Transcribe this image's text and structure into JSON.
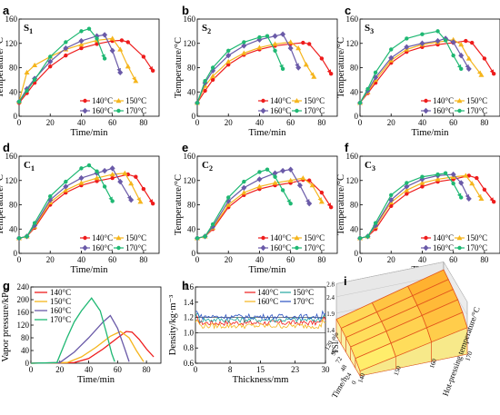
{
  "colors": {
    "red": "#ee1c1c",
    "orange": "#f5b51c",
    "purple": "#6a5aa8",
    "green": "#1fb873",
    "teal": "#23a6a0",
    "blue": "#2a52c2"
  },
  "temp_legend": [
    "140°C",
    "150°C",
    "160°C",
    "170°C"
  ],
  "chart_data": [
    {
      "type": "line",
      "panel": "a",
      "title": "S1",
      "xlabel": "Time/min",
      "ylabel": "Temperature/°C",
      "xlim": [
        0,
        90
      ],
      "ylim": [
        0,
        160
      ],
      "xticks": [
        0,
        20,
        40,
        60,
        80
      ],
      "yticks": [
        0,
        40,
        80,
        120,
        160
      ],
      "series": [
        {
          "name": "140°C",
          "x": [
            0,
            5,
            10,
            20,
            30,
            40,
            50,
            60,
            66,
            70,
            80,
            86
          ],
          "y": [
            22,
            38,
            55,
            82,
            100,
            112,
            119,
            124,
            125,
            122,
            98,
            75
          ]
        },
        {
          "name": "150°C",
          "x": [
            0,
            5,
            10,
            20,
            30,
            40,
            50,
            60,
            65,
            70,
            75
          ],
          "y": [
            24,
            72,
            84,
            98,
            110,
            118,
            125,
            128,
            110,
            82,
            58
          ]
        },
        {
          "name": "160°C",
          "x": [
            0,
            5,
            10,
            20,
            30,
            40,
            50,
            55,
            60,
            65
          ],
          "y": [
            24,
            45,
            62,
            90,
            112,
            124,
            132,
            134,
            108,
            72
          ]
        },
        {
          "name": "170°C",
          "x": [
            0,
            5,
            10,
            20,
            30,
            40,
            45,
            50,
            55
          ],
          "y": [
            24,
            42,
            60,
            98,
            122,
            140,
            144,
            128,
            95
          ]
        }
      ]
    },
    {
      "type": "line",
      "panel": "b",
      "title": "S2",
      "xlabel": "Time/min",
      "ylabel": "Temperature/°C",
      "xlim": [
        0,
        90
      ],
      "ylim": [
        0,
        160
      ],
      "xticks": [
        0,
        20,
        40,
        60,
        80
      ],
      "yticks": [
        0,
        40,
        80,
        120,
        160
      ],
      "series": [
        {
          "name": "140°C",
          "x": [
            0,
            5,
            10,
            20,
            30,
            40,
            50,
            60,
            68,
            72,
            80,
            86
          ],
          "y": [
            22,
            42,
            60,
            85,
            101,
            110,
            116,
            119,
            121,
            119,
            95,
            70
          ]
        },
        {
          "name": "150°C",
          "x": [
            0,
            5,
            10,
            20,
            30,
            40,
            50,
            60,
            65,
            70,
            75
          ],
          "y": [
            22,
            50,
            66,
            90,
            104,
            113,
            119,
            122,
            112,
            85,
            65
          ]
        },
        {
          "name": "160°C",
          "x": [
            0,
            5,
            10,
            20,
            30,
            40,
            50,
            55,
            60,
            65
          ],
          "y": [
            22,
            55,
            75,
            100,
            116,
            126,
            132,
            135,
            112,
            80
          ]
        },
        {
          "name": "170°C",
          "x": [
            0,
            5,
            10,
            20,
            30,
            40,
            45,
            50,
            55
          ],
          "y": [
            22,
            58,
            80,
            108,
            122,
            130,
            132,
            108,
            78
          ]
        }
      ]
    },
    {
      "type": "line",
      "panel": "c",
      "title": "S3",
      "xlabel": "Time/min",
      "ylabel": "Temperature/°C",
      "xlim": [
        0,
        90
      ],
      "ylim": [
        0,
        160
      ],
      "xticks": [
        0,
        20,
        40,
        60,
        80
      ],
      "yticks": [
        0,
        40,
        80,
        120,
        160
      ],
      "series": [
        {
          "name": "140°C",
          "x": [
            0,
            5,
            10,
            20,
            30,
            40,
            50,
            60,
            68,
            72,
            80,
            86
          ],
          "y": [
            22,
            38,
            55,
            88,
            106,
            114,
            118,
            121,
            124,
            121,
            95,
            70
          ]
        },
        {
          "name": "150°C",
          "x": [
            0,
            5,
            10,
            20,
            30,
            40,
            50,
            60,
            65,
            70,
            78
          ],
          "y": [
            22,
            40,
            60,
            92,
            110,
            118,
            122,
            126,
            118,
            95,
            68
          ]
        },
        {
          "name": "160°C",
          "x": [
            0,
            5,
            10,
            20,
            30,
            40,
            50,
            55,
            60,
            65,
            70
          ],
          "y": [
            22,
            42,
            64,
            96,
            114,
            120,
            124,
            128,
            122,
            100,
            78
          ]
        },
        {
          "name": "170°C",
          "x": [
            0,
            5,
            10,
            20,
            30,
            40,
            50,
            55,
            60,
            65
          ],
          "y": [
            22,
            45,
            72,
            110,
            128,
            135,
            140,
            125,
            100,
            78
          ]
        }
      ]
    },
    {
      "type": "line",
      "panel": "d",
      "title": "C1",
      "xlabel": "Time/min",
      "ylabel": "Temperature/°C",
      "xlim": [
        0,
        90
      ],
      "ylim": [
        0,
        160
      ],
      "xticks": [
        0,
        20,
        40,
        60,
        80
      ],
      "yticks": [
        0,
        40,
        80,
        120,
        160
      ],
      "series": [
        {
          "name": "140°C",
          "x": [
            0,
            5,
            10,
            20,
            30,
            40,
            50,
            60,
            70,
            75,
            80,
            86
          ],
          "y": [
            25,
            28,
            42,
            80,
            100,
            112,
            119,
            124,
            130,
            126,
            106,
            82
          ]
        },
        {
          "name": "150°C",
          "x": [
            0,
            5,
            10,
            20,
            30,
            40,
            50,
            60,
            68,
            72,
            78
          ],
          "y": [
            25,
            28,
            44,
            84,
            104,
            116,
            124,
            130,
            132,
            115,
            85
          ]
        },
        {
          "name": "160°C",
          "x": [
            0,
            5,
            10,
            20,
            30,
            40,
            50,
            55,
            60,
            65,
            72
          ],
          "y": [
            25,
            28,
            46,
            88,
            110,
            124,
            132,
            136,
            140,
            118,
            88
          ]
        },
        {
          "name": "170°C",
          "x": [
            0,
            5,
            10,
            20,
            30,
            40,
            45,
            50,
            55,
            60
          ],
          "y": [
            25,
            28,
            50,
            94,
            118,
            140,
            145,
            135,
            110,
            86
          ]
        }
      ]
    },
    {
      "type": "line",
      "panel": "e",
      "title": "C2",
      "xlabel": "Time/min",
      "ylabel": "Temperature/°C",
      "xlim": [
        0,
        90
      ],
      "ylim": [
        0,
        160
      ],
      "xticks": [
        0,
        20,
        40,
        60,
        80
      ],
      "yticks": [
        0,
        40,
        80,
        120,
        160
      ],
      "series": [
        {
          "name": "140°C",
          "x": [
            0,
            5,
            10,
            20,
            30,
            40,
            50,
            60,
            68,
            72,
            80,
            86
          ],
          "y": [
            25,
            28,
            40,
            76,
            96,
            106,
            112,
            116,
            121,
            120,
            100,
            76
          ]
        },
        {
          "name": "150°C",
          "x": [
            0,
            5,
            10,
            20,
            30,
            40,
            50,
            60,
            68,
            74,
            80
          ],
          "y": [
            25,
            28,
            42,
            80,
            100,
            110,
            116,
            120,
            124,
            112,
            85
          ]
        },
        {
          "name": "160°C",
          "x": [
            0,
            5,
            10,
            20,
            30,
            40,
            50,
            55,
            60,
            66,
            72
          ],
          "y": [
            25,
            28,
            44,
            86,
            108,
            122,
            132,
            136,
            138,
            112,
            82
          ]
        },
        {
          "name": "170°C",
          "x": [
            0,
            5,
            10,
            20,
            30,
            40,
            45,
            50,
            55,
            60
          ],
          "y": [
            25,
            28,
            48,
            92,
            118,
            134,
            138,
            126,
            104,
            82
          ]
        }
      ]
    },
    {
      "type": "line",
      "panel": "f",
      "title": "C3",
      "xlabel": "Time/min",
      "ylabel": "Temperature/°C",
      "xlim": [
        0,
        90
      ],
      "ylim": [
        0,
        160
      ],
      "xticks": [
        0,
        20,
        40,
        60,
        80
      ],
      "yticks": [
        0,
        40,
        80,
        120,
        160
      ],
      "series": [
        {
          "name": "140°C",
          "x": [
            0,
            5,
            10,
            20,
            30,
            40,
            50,
            60,
            70,
            75,
            80,
            86
          ],
          "y": [
            25,
            28,
            40,
            78,
            98,
            110,
            118,
            122,
            128,
            124,
            105,
            85
          ]
        },
        {
          "name": "150°C",
          "x": [
            0,
            5,
            10,
            20,
            30,
            40,
            50,
            60,
            68,
            72,
            78
          ],
          "y": [
            25,
            28,
            44,
            84,
            104,
            116,
            122,
            126,
            128,
            115,
            90
          ]
        },
        {
          "name": "160°C",
          "x": [
            0,
            5,
            10,
            20,
            30,
            40,
            50,
            60,
            65,
            70
          ],
          "y": [
            25,
            28,
            46,
            88,
            110,
            122,
            128,
            130,
            116,
            90
          ]
        },
        {
          "name": "170°C",
          "x": [
            0,
            5,
            10,
            20,
            30,
            40,
            50,
            55,
            60,
            65
          ],
          "y": [
            25,
            28,
            50,
            96,
            116,
            126,
            130,
            132,
            115,
            92
          ]
        }
      ]
    },
    {
      "type": "line",
      "panel": "g",
      "xlabel": "Time/min",
      "ylabel": "Vapor pressure/kPa",
      "xlim": [
        0,
        90
      ],
      "ylim": [
        0,
        240
      ],
      "xticks": [
        0,
        20,
        40,
        60,
        80
      ],
      "yticks": [
        0,
        40,
        80,
        120,
        160,
        200,
        240
      ],
      "series": [
        {
          "name": "140°C",
          "x": [
            0,
            30,
            40,
            50,
            60,
            66,
            70,
            75,
            80,
            85
          ],
          "y": [
            0,
            2,
            15,
            45,
            80,
            100,
            98,
            75,
            45,
            20
          ]
        },
        {
          "name": "150°C",
          "x": [
            0,
            25,
            35,
            45,
            55,
            62,
            68,
            73,
            78
          ],
          "y": [
            0,
            2,
            20,
            50,
            85,
            100,
            80,
            40,
            5
          ]
        },
        {
          "name": "160°C",
          "x": [
            0,
            20,
            30,
            40,
            50,
            55,
            60,
            65,
            68
          ],
          "y": [
            0,
            2,
            35,
            80,
            130,
            150,
            110,
            45,
            5
          ]
        },
        {
          "name": "170°C",
          "x": [
            0,
            18,
            25,
            30,
            35,
            42,
            48,
            52,
            56,
            58
          ],
          "y": [
            0,
            2,
            80,
            130,
            165,
            205,
            165,
            100,
            30,
            5
          ]
        }
      ]
    },
    {
      "type": "line",
      "panel": "h",
      "xlabel": "Thickness/mm",
      "ylabel": "Density/kg·m⁻³",
      "xlim": [
        0,
        30
      ],
      "ylim": [
        0.6,
        1.6
      ],
      "xticks": [
        0,
        8,
        15,
        23,
        30
      ],
      "yticks": [
        0.6,
        0.8,
        1.0,
        1.2,
        1.4,
        1.6
      ],
      "series": [
        {
          "name": "140°C",
          "mean": 1.13
        },
        {
          "name": "150°C",
          "mean": 1.17
        },
        {
          "name": "160°C",
          "mean": 1.09
        },
        {
          "name": "170°C",
          "mean": 1.21
        }
      ]
    },
    {
      "type": "heatmap",
      "panel": "i",
      "style": "3d-surface",
      "xlabel": "Time/h",
      "ylabel": "Hot-pressing temperature/°C",
      "zlabel": "TSI/%",
      "x": [
        0,
        24,
        48,
        72,
        96,
        120
      ],
      "y": [
        140,
        150,
        160,
        170
      ],
      "zticks": [
        1.4,
        1.9,
        2.4,
        2.8
      ]
    }
  ],
  "panels": {
    "a": {
      "label": "a",
      "title_main": "S",
      "title_sub": "1",
      "xlabel": "Time/min",
      "ylabel": "Temperature/°C"
    },
    "b": {
      "label": "b",
      "title_main": "S",
      "title_sub": "2",
      "xlabel": "Time/min",
      "ylabel": "Temperature/°C"
    },
    "c": {
      "label": "c",
      "title_main": "S",
      "title_sub": "3",
      "xlabel": "Time/min",
      "ylabel": "Temperature/°C"
    },
    "d": {
      "label": "d",
      "title_main": "C",
      "title_sub": "1",
      "xlabel": "Time/min",
      "ylabel": "Temperature/°C"
    },
    "e": {
      "label": "e",
      "title_main": "C",
      "title_sub": "2",
      "xlabel": "Time/min",
      "ylabel": "Temperature/°C"
    },
    "f": {
      "label": "f",
      "title_main": "C",
      "title_sub": "3",
      "xlabel": "Time/min",
      "ylabel": "Temperature/°C"
    },
    "g": {
      "label": "g",
      "xlabel": "Time/min",
      "ylabel": "Vapor pressure/kPa"
    },
    "h": {
      "label": "h",
      "xlabel": "Thickness/mm",
      "ylabel": "Density/kg·m⁻³"
    },
    "i": {
      "label": "i",
      "xlabel": "Time/h",
      "ylabel": "Hot-pressing temperature/°C",
      "zlabel": "TSI/%"
    }
  }
}
